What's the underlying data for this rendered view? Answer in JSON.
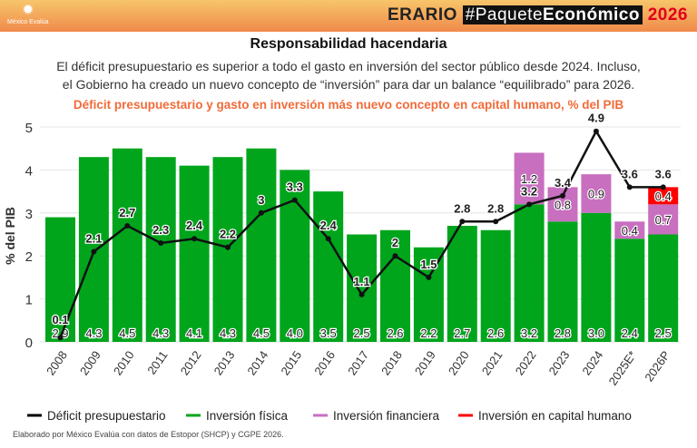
{
  "header": {
    "logo_text": "México Evalúa",
    "brand": "ERARIO",
    "tag_prefix": "#Paquete",
    "tag_bold": "Económico",
    "year": "2026"
  },
  "title": "Responsabilidad hacendaria",
  "subtitle_line1": "El déficit presupuestario es superior a todo el gasto en inversión del sector público desde 2024. Incluso,",
  "subtitle_line2": "el Gobierno ha creado un nuevo concepto de “inversión” para dar un balance “equilibrado” para 2026.",
  "footer": "Elaborado por México Evalúa con datos de Estopor (SHCP) y CGPE 2026.",
  "chart_data": {
    "type": "bar",
    "title": "Déficit presupuestario y gasto en inversión más nuevo concepto en capital humano, % del PIB",
    "ylabel": "% del PIB",
    "ylim": [
      0,
      5
    ],
    "yticks": [
      0,
      1,
      2,
      3,
      4,
      5
    ],
    "grid": true,
    "legend": "bottom",
    "categories": [
      "2008",
      "2009",
      "2010",
      "2011",
      "2012",
      "2013",
      "2014",
      "2015",
      "2016",
      "2017",
      "2018",
      "2019",
      "2020",
      "2021",
      "2022",
      "2023",
      "2024",
      "2025E*",
      "2026P"
    ],
    "series": [
      {
        "name": "Inversión física",
        "kind": "bar",
        "color": "#00a51c",
        "values": [
          2.9,
          4.3,
          4.5,
          4.3,
          4.1,
          4.3,
          4.5,
          4.0,
          3.5,
          2.5,
          2.6,
          2.2,
          2.7,
          2.6,
          3.2,
          2.8,
          3.0,
          2.4,
          2.5
        ],
        "labels": [
          "2.9",
          "4.3",
          "4.5",
          "4.3",
          "4.1",
          "4.3",
          "4.5",
          "4.0",
          "3.5",
          "2.5",
          "2.6",
          "2.2",
          "2.7",
          "2.6",
          "3.2",
          "2.8",
          "3.0",
          "2.4",
          "2.5"
        ]
      },
      {
        "name": "Inversión financiera",
        "kind": "bar",
        "color": "#c86fc0",
        "values": [
          0,
          0,
          0,
          0,
          0,
          0,
          0,
          0,
          0,
          0,
          0,
          0,
          0,
          0,
          1.2,
          0.8,
          0.9,
          0.4,
          0.7
        ]
      },
      {
        "name": "Inversión en capital humano",
        "kind": "bar",
        "color": "#ff0000",
        "values": [
          0,
          0,
          0,
          0,
          0,
          0,
          0,
          0,
          0,
          0,
          0,
          0,
          0,
          0,
          0,
          0,
          0,
          0,
          0.4
        ]
      },
      {
        "name": "Déficit presupuestario",
        "kind": "line",
        "color": "#000000",
        "values": [
          0.1,
          2.1,
          2.7,
          2.3,
          2.4,
          2.2,
          3,
          3.3,
          2.4,
          1.1,
          2,
          1.5,
          2.8,
          2.8,
          3.2,
          3.4,
          4.9,
          3.6,
          3.6
        ]
      }
    ]
  }
}
